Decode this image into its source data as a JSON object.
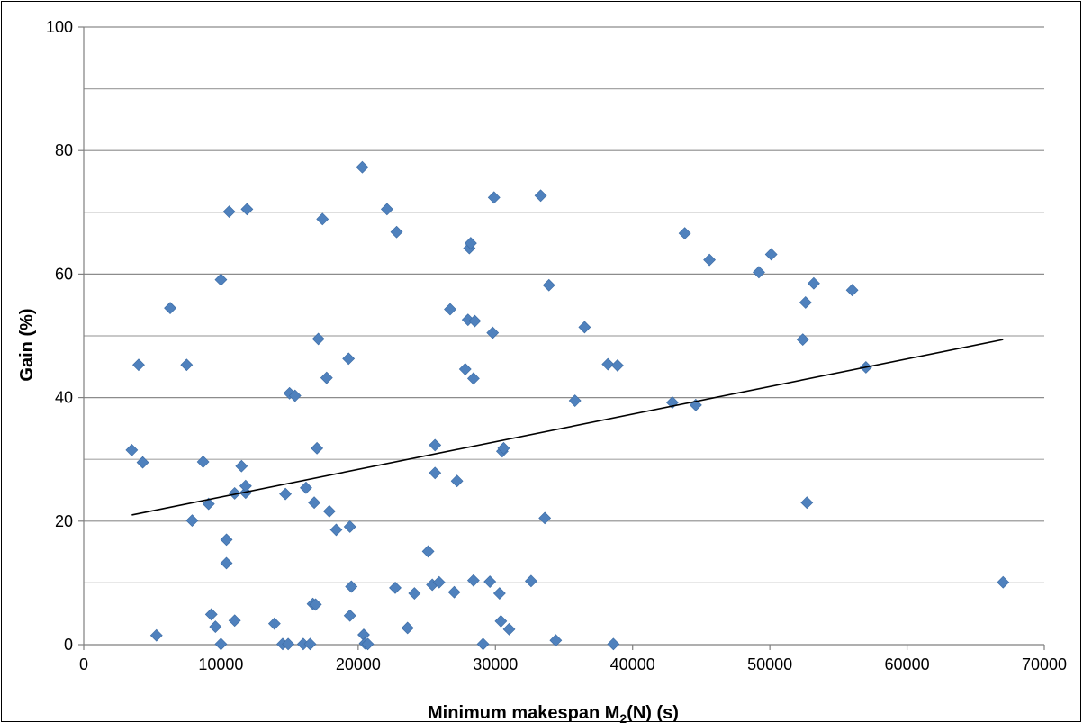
{
  "chart_data": {
    "type": "scatter",
    "title": "",
    "xlabel": "Minimum makespan M",
    "xlabel_subscript": "2",
    "xlabel_suffix": "(N)  (s)",
    "ylabel": "Gain (%)",
    "xlim": [
      0,
      70000
    ],
    "ylim": [
      0,
      100
    ],
    "x_ticks": [
      0,
      10000,
      20000,
      30000,
      40000,
      50000,
      60000,
      70000
    ],
    "y_ticks": [
      0,
      20,
      40,
      60,
      80,
      100
    ],
    "y_gridlines": [
      10,
      20,
      30,
      40,
      50,
      60,
      70,
      80,
      90,
      100
    ],
    "grid": "horizontal",
    "legend": "none",
    "marker": "diamond",
    "marker_color": "#4F81BD",
    "trendline_color": "#000000",
    "trendline": {
      "x": [
        3500,
        67000
      ],
      "y": [
        21.0,
        49.4
      ]
    },
    "points": [
      {
        "x": 3500,
        "y": 31.5
      },
      {
        "x": 4000,
        "y": 45.3
      },
      {
        "x": 4300,
        "y": 29.5
      },
      {
        "x": 5300,
        "y": 1.5
      },
      {
        "x": 6300,
        "y": 54.5
      },
      {
        "x": 7500,
        "y": 45.3
      },
      {
        "x": 7900,
        "y": 20.1
      },
      {
        "x": 8700,
        "y": 29.6
      },
      {
        "x": 9100,
        "y": 22.8
      },
      {
        "x": 9300,
        "y": 4.9
      },
      {
        "x": 9600,
        "y": 2.9
      },
      {
        "x": 10000,
        "y": 0.1
      },
      {
        "x": 10000,
        "y": 59.1
      },
      {
        "x": 10400,
        "y": 13.2
      },
      {
        "x": 10400,
        "y": 17.0
      },
      {
        "x": 10600,
        "y": 70.1
      },
      {
        "x": 11000,
        "y": 3.9
      },
      {
        "x": 11000,
        "y": 24.5
      },
      {
        "x": 11500,
        "y": 28.9
      },
      {
        "x": 11800,
        "y": 24.6
      },
      {
        "x": 11800,
        "y": 25.7
      },
      {
        "x": 11900,
        "y": 70.5
      },
      {
        "x": 13900,
        "y": 3.4
      },
      {
        "x": 14500,
        "y": 0.1
      },
      {
        "x": 14700,
        "y": 24.4
      },
      {
        "x": 14900,
        "y": 0.1
      },
      {
        "x": 15000,
        "y": 40.7
      },
      {
        "x": 15400,
        "y": 40.3
      },
      {
        "x": 16000,
        "y": 0.1
      },
      {
        "x": 16200,
        "y": 25.4
      },
      {
        "x": 16500,
        "y": 0.1
      },
      {
        "x": 16700,
        "y": 6.6
      },
      {
        "x": 16800,
        "y": 23.0
      },
      {
        "x": 16900,
        "y": 6.5
      },
      {
        "x": 17000,
        "y": 31.8
      },
      {
        "x": 17100,
        "y": 49.5
      },
      {
        "x": 17400,
        "y": 68.9
      },
      {
        "x": 17700,
        "y": 43.2
      },
      {
        "x": 17900,
        "y": 21.6
      },
      {
        "x": 18400,
        "y": 18.6
      },
      {
        "x": 19300,
        "y": 46.3
      },
      {
        "x": 19400,
        "y": 4.7
      },
      {
        "x": 19400,
        "y": 19.1
      },
      {
        "x": 19500,
        "y": 9.4
      },
      {
        "x": 20300,
        "y": 77.3
      },
      {
        "x": 20400,
        "y": 1.6
      },
      {
        "x": 20500,
        "y": 0.2
      },
      {
        "x": 20700,
        "y": 0.1
      },
      {
        "x": 22100,
        "y": 70.5
      },
      {
        "x": 22700,
        "y": 9.2
      },
      {
        "x": 22800,
        "y": 66.8
      },
      {
        "x": 23600,
        "y": 2.7
      },
      {
        "x": 24100,
        "y": 8.3
      },
      {
        "x": 25100,
        "y": 15.1
      },
      {
        "x": 25400,
        "y": 9.7
      },
      {
        "x": 25600,
        "y": 27.8
      },
      {
        "x": 25600,
        "y": 32.3
      },
      {
        "x": 25900,
        "y": 10.1
      },
      {
        "x": 26700,
        "y": 54.3
      },
      {
        "x": 27000,
        "y": 8.5
      },
      {
        "x": 27200,
        "y": 26.5
      },
      {
        "x": 27800,
        "y": 44.6
      },
      {
        "x": 28000,
        "y": 52.6
      },
      {
        "x": 28100,
        "y": 64.2
      },
      {
        "x": 28200,
        "y": 65.0
      },
      {
        "x": 28400,
        "y": 10.4
      },
      {
        "x": 28400,
        "y": 43.1
      },
      {
        "x": 28500,
        "y": 52.4
      },
      {
        "x": 29100,
        "y": 0.1
      },
      {
        "x": 29600,
        "y": 10.2
      },
      {
        "x": 29800,
        "y": 50.5
      },
      {
        "x": 29900,
        "y": 72.4
      },
      {
        "x": 30300,
        "y": 8.3
      },
      {
        "x": 30400,
        "y": 3.8
      },
      {
        "x": 30500,
        "y": 31.3
      },
      {
        "x": 30600,
        "y": 31.8
      },
      {
        "x": 31000,
        "y": 2.5
      },
      {
        "x": 32600,
        "y": 10.3
      },
      {
        "x": 33300,
        "y": 72.7
      },
      {
        "x": 33600,
        "y": 20.5
      },
      {
        "x": 33900,
        "y": 58.2
      },
      {
        "x": 34400,
        "y": 0.7
      },
      {
        "x": 35800,
        "y": 39.5
      },
      {
        "x": 36500,
        "y": 51.4
      },
      {
        "x": 38200,
        "y": 45.4
      },
      {
        "x": 38600,
        "y": 0.1
      },
      {
        "x": 38900,
        "y": 45.2
      },
      {
        "x": 42900,
        "y": 39.2
      },
      {
        "x": 43800,
        "y": 66.6
      },
      {
        "x": 44600,
        "y": 38.8
      },
      {
        "x": 45600,
        "y": 62.3
      },
      {
        "x": 49200,
        "y": 60.3
      },
      {
        "x": 50100,
        "y": 63.2
      },
      {
        "x": 52400,
        "y": 49.4
      },
      {
        "x": 52600,
        "y": 55.4
      },
      {
        "x": 52700,
        "y": 23.0
      },
      {
        "x": 53200,
        "y": 58.5
      },
      {
        "x": 56000,
        "y": 57.4
      },
      {
        "x": 57000,
        "y": 44.9
      },
      {
        "x": 67000,
        "y": 10.1
      }
    ]
  }
}
